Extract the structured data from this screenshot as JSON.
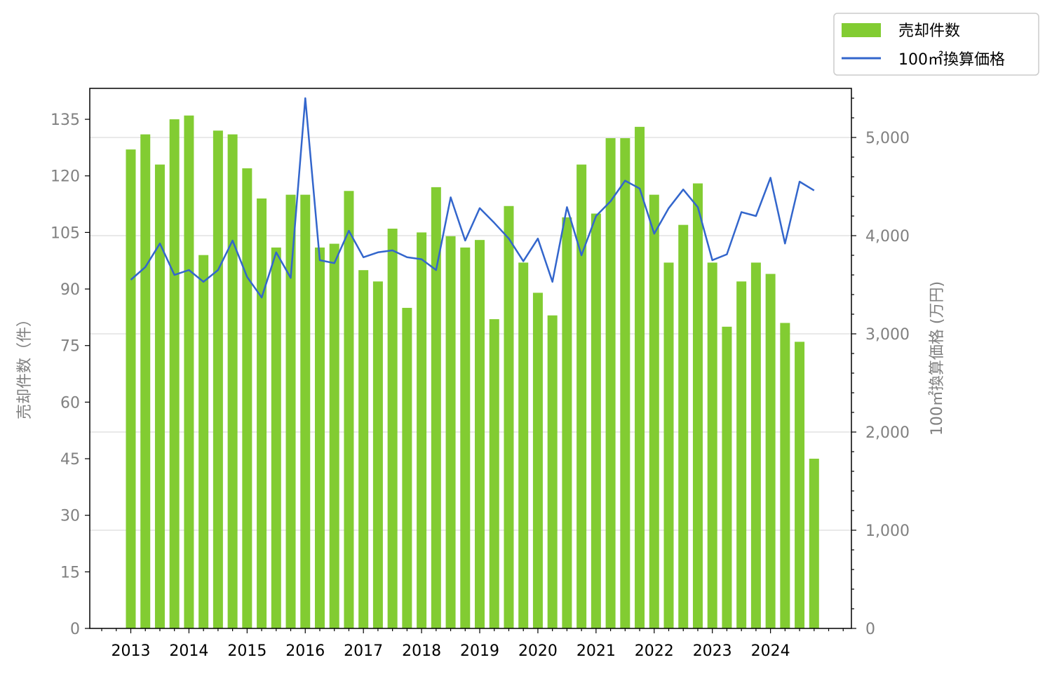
{
  "chart_data": {
    "type": "bar+line",
    "x_ticks": [
      "2013",
      "2014",
      "2015",
      "2016",
      "2017",
      "2018",
      "2019",
      "2020",
      "2021",
      "2022",
      "2023",
      "2024"
    ],
    "periods_per_year": 4,
    "start_year": 2013,
    "series": [
      {
        "name": "売却件数",
        "type": "bar",
        "axis": "left",
        "color": "#82cc32",
        "values": [
          127,
          131,
          123,
          135,
          136,
          99,
          132,
          131,
          122,
          114,
          101,
          115,
          115,
          101,
          102,
          116,
          95,
          92,
          106,
          85,
          105,
          117,
          104,
          101,
          103,
          82,
          112,
          97,
          89,
          83,
          109,
          123,
          110,
          130,
          130,
          133,
          115,
          97,
          107,
          118,
          97,
          80,
          92,
          97,
          94,
          81,
          76,
          45
        ]
      },
      {
        "name": "100㎡換算価格",
        "type": "line",
        "axis": "right",
        "color": "#3366cc",
        "values": [
          3550,
          3680,
          3920,
          3600,
          3650,
          3530,
          3650,
          3950,
          3580,
          3370,
          3830,
          3570,
          5400,
          3750,
          3720,
          4050,
          3780,
          3830,
          3850,
          3780,
          3760,
          3650,
          4390,
          3950,
          4280,
          4130,
          3970,
          3740,
          3970,
          3530,
          4290,
          3800,
          4200,
          4350,
          4560,
          4480,
          4020,
          4280,
          4470,
          4290,
          3750,
          3810,
          4240,
          4200,
          4590,
          3920,
          4550,
          4460
        ]
      }
    ],
    "y_left": {
      "label": "売却件数（件）",
      "ticks": [
        "0",
        "15",
        "30",
        "45",
        "60",
        "75",
        "90",
        "105",
        "120",
        "135"
      ],
      "min": 0,
      "max": 143.2
    },
    "y_right": {
      "label": "100㎡換算価格 (万円)",
      "ticks": [
        "0",
        "1,000",
        "2,000",
        "3,000",
        "4,000",
        "5,000"
      ],
      "min": 0,
      "max": 5500
    },
    "grid": "horizontal, right axis major ticks",
    "legend": "top-right, outside plot"
  }
}
